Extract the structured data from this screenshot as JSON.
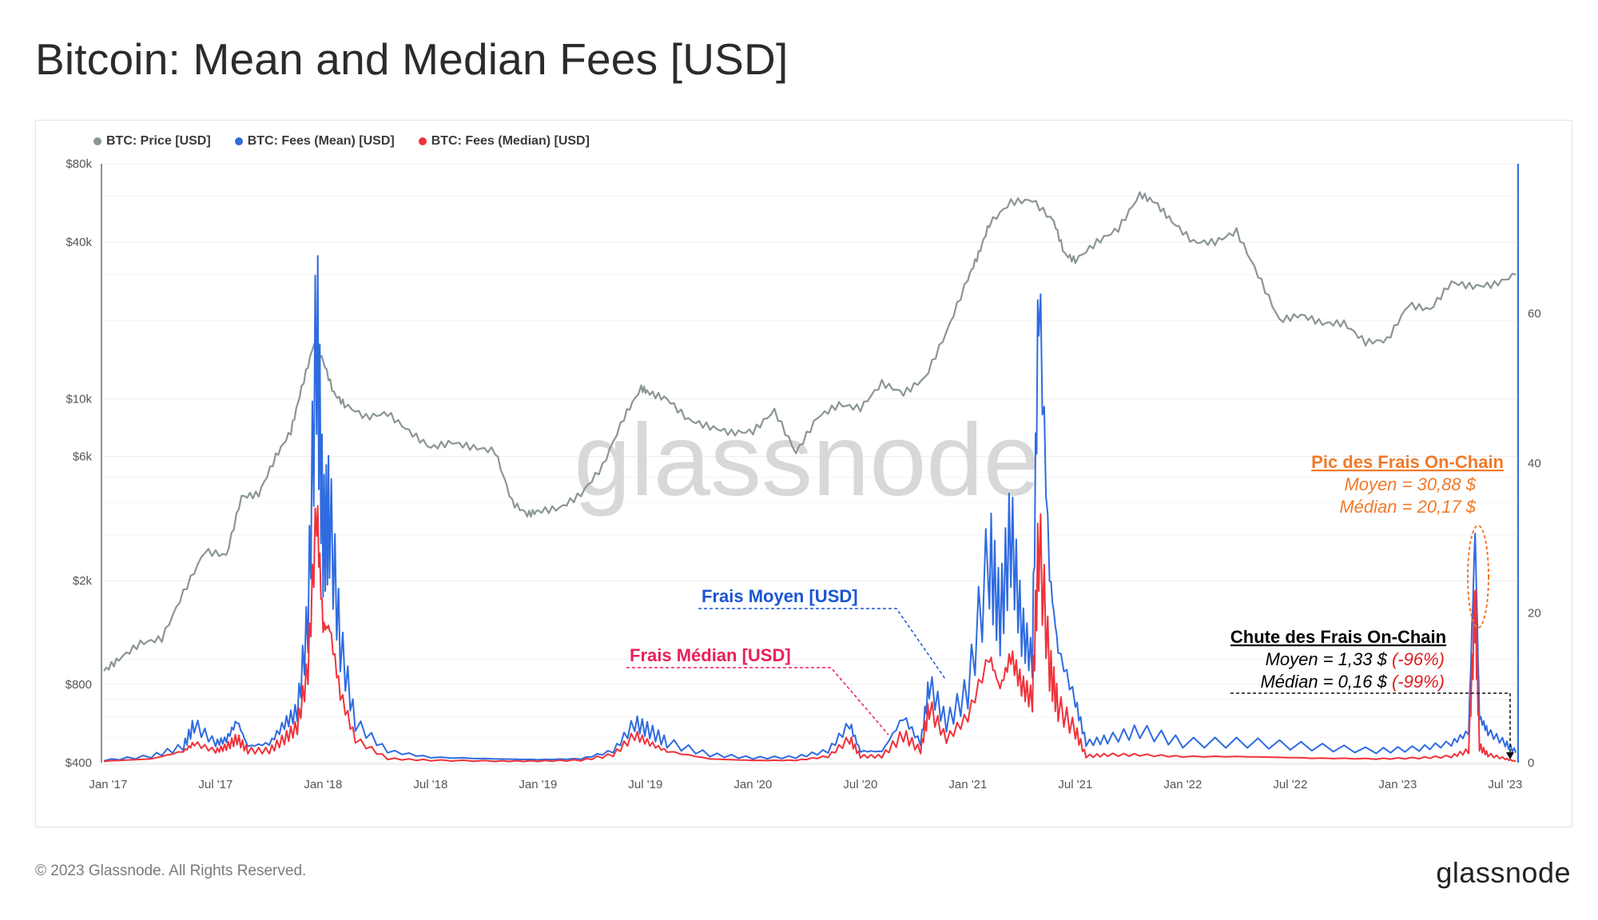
{
  "page": {
    "title": "Bitcoin: Mean and Median Fees [USD]",
    "copyright": "© 2023 Glassnode. All Rights Reserved.",
    "logo": "glassnode",
    "watermark": "glassnode"
  },
  "colors": {
    "price": "#8a9597",
    "mean": "#2f6be0",
    "median": "#f0323b",
    "peak_annotation": "#f07a2a",
    "mean_annotation": "#1a55d6",
    "median_annotation": "#e8205a"
  },
  "legend": [
    {
      "label": "BTC: Price [USD]",
      "color": "#8a9597"
    },
    {
      "label": "BTC: Fees (Mean) [USD]",
      "color": "#2f6be0"
    },
    {
      "label": "BTC: Fees (Median) [USD]",
      "color": "#f0323b"
    }
  ],
  "annotations": {
    "mean_label": "Frais Moyen [USD]",
    "median_label": "Frais Médian [USD]",
    "peak_title": "Pic des Frais On-Chain",
    "peak_mean": "Moyen = 30,88 $",
    "peak_median": "Médian = 20,17 $",
    "drop_title": "Chute des Frais On-Chain",
    "drop_mean_value": "Moyen = 1,33 $",
    "drop_mean_pct": "(-96%)",
    "drop_median_value": "Médian = 0,16 $",
    "drop_median_pct": "(-99%)"
  },
  "chart_data": {
    "type": "line",
    "title": "Bitcoin: Mean and Median Fees [USD]",
    "x_ticks": [
      "Jan '17",
      "Jul '17",
      "Jan '18",
      "Jul '18",
      "Jan '19",
      "Jul '19",
      "Jan '20",
      "Jul '20",
      "Jan '21",
      "Jul '21",
      "Jan '22",
      "Jul '22",
      "Jan '23",
      "Jul '23"
    ],
    "y_left": {
      "scale": "log",
      "ticks": [
        "$400",
        "$800",
        "$2k",
        "$6k",
        "$10k",
        "$40k",
        "$80k"
      ],
      "tick_values": [
        400,
        800,
        2000,
        6000,
        10000,
        40000,
        80000
      ],
      "range": [
        400,
        80000
      ]
    },
    "y_right": {
      "scale": "linear",
      "ticks": [
        "0",
        "20",
        "40",
        "60"
      ],
      "tick_values": [
        0,
        20,
        40,
        60
      ],
      "range": [
        0,
        80
      ]
    },
    "series": [
      {
        "name": "BTC: Price [USD]",
        "axis": "left",
        "x": [
          2016.98,
          2017.05,
          2017.15,
          2017.25,
          2017.35,
          2017.45,
          2017.55,
          2017.62,
          2017.7,
          2017.78,
          2017.85,
          2017.9,
          2017.96,
          2018.0,
          2018.05,
          2018.1,
          2018.2,
          2018.3,
          2018.4,
          2018.5,
          2018.6,
          2018.7,
          2018.8,
          2018.88,
          2018.95,
          2019.0,
          2019.1,
          2019.2,
          2019.3,
          2019.4,
          2019.48,
          2019.52,
          2019.6,
          2019.7,
          2019.8,
          2019.9,
          2020.0,
          2020.1,
          2020.2,
          2020.3,
          2020.4,
          2020.5,
          2020.6,
          2020.7,
          2020.8,
          2020.9,
          2021.0,
          2021.05,
          2021.1,
          2021.2,
          2021.3,
          2021.4,
          2021.45,
          2021.5,
          2021.6,
          2021.7,
          2021.8,
          2021.87,
          2021.95,
          2022.05,
          2022.15,
          2022.25,
          2022.35,
          2022.45,
          2022.55,
          2022.65,
          2022.75,
          2022.85,
          2022.95,
          2023.05,
          2023.15,
          2023.25,
          2023.35,
          2023.45,
          2023.55
        ],
        "values": [
          900,
          1000,
          1150,
          1200,
          1800,
          2600,
          2500,
          4200,
          4300,
          6000,
          7500,
          11000,
          16500,
          14000,
          10500,
          9500,
          8500,
          8800,
          7500,
          6500,
          6800,
          6500,
          6300,
          4000,
          3600,
          3700,
          3800,
          4300,
          5500,
          8500,
          11000,
          10500,
          10000,
          8300,
          7800,
          7400,
          7500,
          9000,
          6200,
          8500,
          9500,
          9200,
          11500,
          10500,
          12000,
          18000,
          29000,
          36000,
          47000,
          57000,
          58000,
          48000,
          36000,
          34000,
          40000,
          45000,
          61000,
          57000,
          48000,
          40000,
          40000,
          44000,
          30000,
          20000,
          21000,
          19500,
          19500,
          16500,
          16800,
          23000,
          22000,
          28000,
          27000,
          27500,
          30000
        ]
      },
      {
        "name": "BTC: Fees (Mean) [USD]",
        "axis": "right",
        "x": [
          2016.98,
          2017.2,
          2017.35,
          2017.4,
          2017.5,
          2017.55,
          2017.6,
          2017.65,
          2017.75,
          2017.82,
          2017.88,
          2017.93,
          2017.97,
          2018.0,
          2018.03,
          2018.08,
          2018.15,
          2018.3,
          2018.5,
          2018.8,
          2019.0,
          2019.2,
          2019.35,
          2019.45,
          2019.52,
          2019.6,
          2019.8,
          2020.0,
          2020.2,
          2020.35,
          2020.45,
          2020.5,
          2020.6,
          2020.7,
          2020.78,
          2020.82,
          2020.9,
          2021.0,
          2021.1,
          2021.15,
          2021.2,
          2021.25,
          2021.3,
          2021.33,
          2021.38,
          2021.42,
          2021.5,
          2021.55,
          2021.65,
          2021.8,
          2022.0,
          2022.3,
          2022.6,
          2022.9,
          2023.1,
          2023.25,
          2023.33,
          2023.36,
          2023.38,
          2023.42,
          2023.5,
          2023.55
        ],
        "values": [
          0.3,
          0.8,
          2.0,
          4.8,
          2.5,
          3.0,
          5.5,
          2.2,
          2.5,
          5.0,
          6.5,
          18.0,
          55.0,
          28.0,
          31.0,
          15.0,
          5.0,
          1.5,
          0.7,
          0.5,
          0.4,
          0.5,
          1.5,
          5.0,
          4.0,
          2.5,
          1.0,
          0.6,
          0.7,
          1.5,
          5.0,
          1.5,
          1.5,
          6.0,
          2.5,
          10.0,
          5.0,
          9.0,
          26.0,
          18.0,
          29.0,
          17.0,
          13.0,
          62.0,
          25.0,
          15.0,
          8.0,
          2.5,
          3.0,
          4.0,
          2.5,
          2.5,
          2.0,
          1.5,
          1.8,
          2.5,
          4.0,
          30.88,
          6.0,
          4.0,
          2.5,
          1.33
        ]
      },
      {
        "name": "BTC: Fees (Median) [USD]",
        "axis": "right",
        "x": [
          2016.98,
          2017.2,
          2017.35,
          2017.4,
          2017.5,
          2017.55,
          2017.6,
          2017.65,
          2017.75,
          2017.82,
          2017.88,
          2017.93,
          2017.97,
          2018.0,
          2018.03,
          2018.08,
          2018.15,
          2018.3,
          2018.5,
          2018.8,
          2019.0,
          2019.2,
          2019.35,
          2019.45,
          2019.52,
          2019.6,
          2019.8,
          2020.0,
          2020.2,
          2020.35,
          2020.45,
          2020.5,
          2020.6,
          2020.7,
          2020.78,
          2020.82,
          2020.9,
          2021.0,
          2021.1,
          2021.15,
          2021.2,
          2021.25,
          2021.3,
          2021.33,
          2021.38,
          2021.42,
          2021.5,
          2021.55,
          2021.65,
          2021.8,
          2022.0,
          2022.3,
          2022.6,
          2022.9,
          2023.1,
          2023.25,
          2023.33,
          2023.36,
          2023.38,
          2023.42,
          2023.5,
          2023.55
        ],
        "values": [
          0.2,
          0.5,
          1.5,
          2.5,
          1.5,
          2.0,
          3.0,
          1.5,
          1.5,
          3.0,
          4.5,
          12.0,
          33.0,
          18.0,
          18.0,
          9.0,
          3.0,
          0.5,
          0.3,
          0.2,
          0.2,
          0.3,
          1.0,
          3.5,
          2.5,
          1.5,
          0.5,
          0.3,
          0.3,
          0.8,
          3.0,
          0.8,
          0.8,
          3.5,
          1.5,
          7.0,
          3.0,
          6.0,
          14.0,
          10.0,
          14.0,
          10.0,
          8.0,
          28.0,
          12.0,
          7.0,
          4.0,
          0.8,
          1.0,
          1.0,
          0.8,
          0.8,
          0.6,
          0.5,
          0.6,
          0.8,
          1.5,
          20.17,
          2.0,
          1.0,
          0.5,
          0.16
        ]
      }
    ],
    "grid": true,
    "legend_position": "top-left"
  }
}
